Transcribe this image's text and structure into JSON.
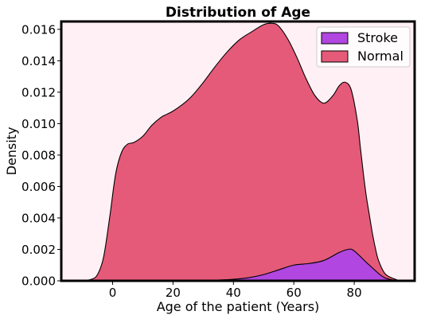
{
  "chart_data": {
    "type": "area",
    "stacked": true,
    "title": "Distribution of Age",
    "xlabel": "Age of the patient (Years)",
    "ylabel": "Density",
    "xlim": [
      -17,
      100
    ],
    "ylim": [
      0,
      0.0165
    ],
    "xticks": [
      0,
      20,
      40,
      60,
      80
    ],
    "yticks": [
      0.0,
      0.002,
      0.004,
      0.006,
      0.008,
      0.01,
      0.012,
      0.014,
      0.016
    ],
    "ytick_labels": [
      "0.000",
      "0.002",
      "0.004",
      "0.006",
      "0.008",
      "0.010",
      "0.012",
      "0.014",
      "0.016"
    ],
    "grid": false,
    "legend_position": "top-right",
    "background": "#fff0f5",
    "series": [
      {
        "name": "Stroke",
        "color": "#b146e0",
        "x": [
          25,
          30,
          35,
          40,
          45,
          50,
          55,
          60,
          65,
          70,
          75,
          78,
          80,
          85,
          90,
          95
        ],
        "y": [
          0.0,
          2e-05,
          5e-05,
          0.0001,
          0.0002,
          0.0004,
          0.0007,
          0.001,
          0.0011,
          0.0013,
          0.0018,
          0.002,
          0.0019,
          0.001,
          0.0002,
          0.0
        ]
      },
      {
        "name": "Normal",
        "color": "#e55a78",
        "x": [
          -10,
          -7,
          -5,
          -3,
          -1,
          1,
          3,
          5,
          7,
          10,
          13,
          16,
          18,
          20,
          23,
          26,
          30,
          34,
          38,
          42,
          46,
          50,
          53,
          55,
          58,
          61,
          64,
          67,
          70,
          73,
          75,
          77,
          79,
          81,
          82,
          83,
          84,
          85,
          86,
          87,
          88,
          90,
          92,
          95
        ],
        "y": [
          0.0,
          0.0001,
          0.0004,
          0.0015,
          0.004,
          0.0068,
          0.0082,
          0.0087,
          0.0088,
          0.0092,
          0.0099,
          0.0104,
          0.0106,
          0.0108,
          0.0112,
          0.0117,
          0.0126,
          0.0136,
          0.0145,
          0.0152,
          0.0156,
          0.0159,
          0.0158,
          0.0155,
          0.0145,
          0.0132,
          0.0118,
          0.0106,
          0.01,
          0.0102,
          0.0106,
          0.0107,
          0.0102,
          0.0085,
          0.007,
          0.0055,
          0.0042,
          0.0032,
          0.0022,
          0.0014,
          0.0008,
          0.0003,
          0.0001,
          0.0
        ]
      }
    ]
  }
}
